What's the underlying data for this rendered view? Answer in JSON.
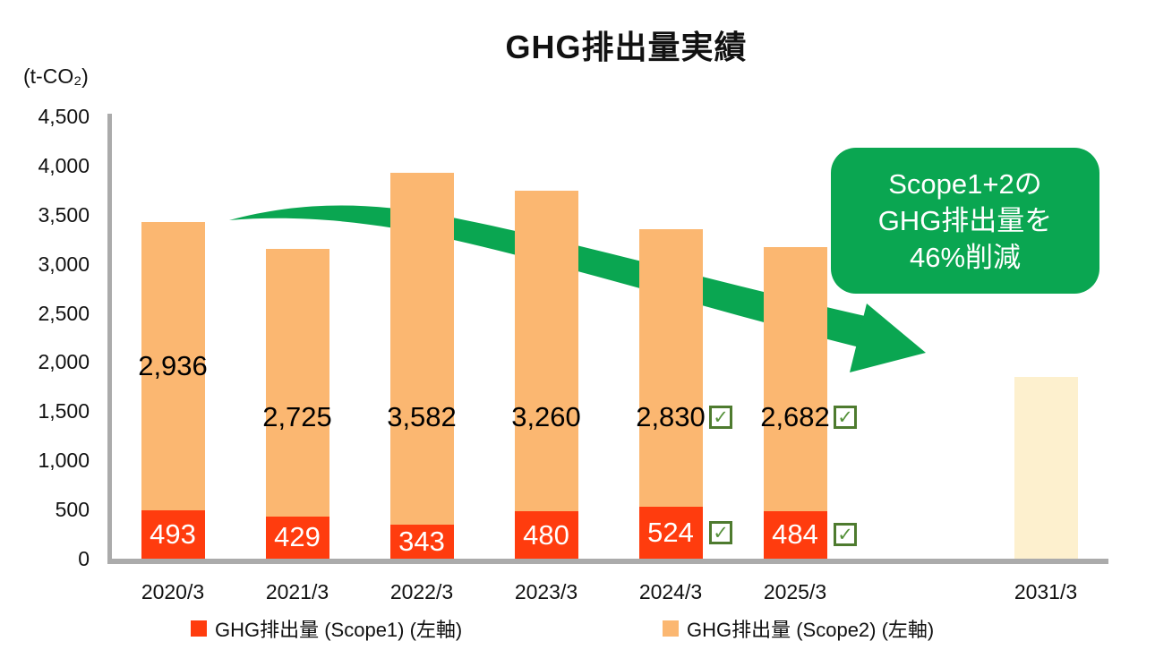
{
  "title": "GHG排出量実績",
  "y_axis": {
    "unit": "(t-CO₂)",
    "ticks": [
      "4,500",
      "4,000",
      "3,500",
      "3,000",
      "2,500",
      "2,000",
      "1,500",
      "1,000",
      "500",
      "0"
    ]
  },
  "axis_color": "#ABABAB",
  "chart_data": {
    "type": "bar",
    "stacked": true,
    "title": "GHG排出量実績",
    "ylabel": "(t-CO₂)",
    "ylim": [
      0,
      4500
    ],
    "ytick_interval": 500,
    "grid": false,
    "legend_position": "bottom",
    "categories": [
      "2020/3",
      "2021/3",
      "2022/3",
      "2023/3",
      "2024/3",
      "2025/3",
      "2031/3"
    ],
    "series": [
      {
        "name": "GHG排出量 (Scope1) (左軸)",
        "color": "#FF3C0E",
        "label_color": "#FFFFFF",
        "values": [
          493,
          429,
          343,
          480,
          524,
          484,
          null
        ],
        "data_labels": [
          "493",
          "429",
          "343",
          "480",
          "524",
          "484",
          ""
        ],
        "checked": [
          false,
          false,
          false,
          false,
          true,
          true,
          false
        ]
      },
      {
        "name": "GHG排出量 (Scope2) (左軸)",
        "color": "#FBB771",
        "label_color": "#000000",
        "values": [
          2936,
          2725,
          3582,
          3260,
          2830,
          2682,
          null
        ],
        "data_labels": [
          "2,936",
          "2,725",
          "3,582",
          "3,260",
          "2,830",
          "2,682",
          ""
        ],
        "checked": [
          false,
          false,
          false,
          false,
          true,
          true,
          false
        ]
      }
    ],
    "target_bar": {
      "category": "2031/3",
      "value_estimate": 1850,
      "color": "#FDF0CE",
      "label": ""
    }
  },
  "annotation": {
    "lines": [
      "Scope1+2の",
      "GHG排出量を",
      "46%削減"
    ],
    "bg_color": "#0AA651",
    "text_color": "#FFFFFF"
  },
  "arrow": {
    "color": "#0AA651",
    "direction": "down-right"
  },
  "check_icon": {
    "glyph": "✓",
    "border_color": "#4E7B2F",
    "check_color": "#55913A"
  }
}
